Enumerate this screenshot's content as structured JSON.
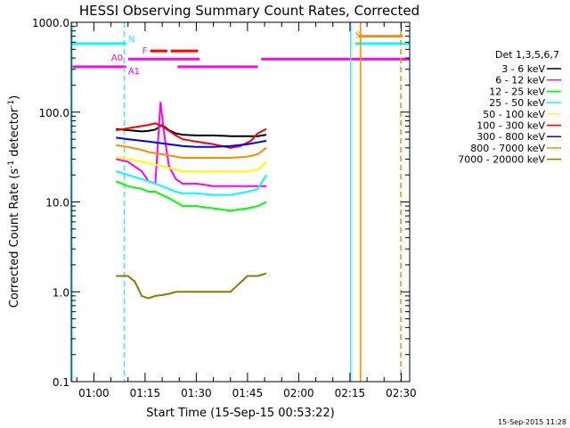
{
  "chart_data": {
    "type": "line",
    "title": "HESSI Observing Summary Count Rates, Corrected",
    "xlabel": "Start Time (15-Sep-15 00:53:22)",
    "ylabel": "Corrected Count Rate (s⁻¹ detector⁻¹)",
    "ylabel_main": "Corrected Count Rate (s",
    "ylabel_sup": "-1",
    "ylabel_mid": " detector",
    "ylabel_end": ")",
    "x_range_minutes": [
      53.37,
      152.5
    ],
    "ylim": [
      0.1,
      1000
    ],
    "y_scale": "log",
    "x_ticks": [
      {
        "minute": 60,
        "label": "01:00"
      },
      {
        "minute": 75,
        "label": "01:15"
      },
      {
        "minute": 90,
        "label": "01:30"
      },
      {
        "minute": 105,
        "label": "01:45"
      },
      {
        "minute": 120,
        "label": "02:00"
      },
      {
        "minute": 135,
        "label": "02:15"
      },
      {
        "minute": 150,
        "label": "02:30"
      }
    ],
    "y_ticks": [
      {
        "value": 1000,
        "label": "1000.0"
      },
      {
        "value": 100,
        "label": "100.0"
      },
      {
        "value": 10,
        "label": "10.0"
      },
      {
        "value": 1,
        "label": "1.0"
      },
      {
        "value": 0.1,
        "label": "0.1"
      }
    ],
    "legend_title": "Det 1,3,5,6,7",
    "legend_position": "right",
    "series": [
      {
        "name": "3 - 6 keV",
        "color": "#000000",
        "x": [
          66.5,
          70,
          74,
          76,
          78,
          80,
          82,
          84,
          86,
          90,
          95,
          100,
          105,
          108,
          110.5
        ],
        "y": [
          65,
          63,
          61,
          62,
          64,
          72,
          63,
          58,
          56,
          55,
          55,
          54,
          54,
          54,
          56
        ]
      },
      {
        "name": "6 - 12 keV",
        "color": "#ff00ff",
        "x": [
          66.5,
          70,
          74,
          76,
          78,
          79.5,
          80.5,
          82,
          84,
          86,
          90,
          95,
          100,
          105,
          108,
          110.5
        ],
        "y": [
          30,
          28,
          22,
          17,
          16,
          130,
          60,
          25,
          18,
          16,
          16,
          15,
          15,
          15,
          15,
          15
        ]
      },
      {
        "name": "12 - 25 keV",
        "color": "#00ff00",
        "x": [
          66.5,
          70,
          74,
          76,
          78,
          80,
          82,
          84,
          86,
          90,
          95,
          100,
          105,
          108,
          110.5
        ],
        "y": [
          17,
          15,
          14,
          13,
          13,
          12,
          11,
          10,
          9,
          9,
          8.5,
          8,
          8.5,
          9,
          10
        ]
      },
      {
        "name": "25 - 50 keV",
        "color": "#00ffff",
        "x": [
          66.5,
          70,
          74,
          76,
          78,
          80,
          82,
          84,
          86,
          90,
          95,
          100,
          105,
          108,
          110.5
        ],
        "y": [
          22,
          20,
          18,
          17,
          16,
          15,
          14,
          13,
          12.5,
          12.5,
          12,
          12,
          13,
          14,
          20
        ]
      },
      {
        "name": "50 - 100 keV",
        "color": "#ffff00",
        "x": [
          66.5,
          70,
          74,
          76,
          78,
          80,
          82,
          84,
          86,
          90,
          95,
          100,
          105,
          108,
          110.5
        ],
        "y": [
          32,
          30,
          28,
          27,
          26,
          25,
          24,
          23,
          22,
          22,
          22,
          22,
          22,
          23,
          28
        ]
      },
      {
        "name": "100 - 300 keV",
        "color": "#ff0000",
        "x": [
          66.5,
          70,
          74,
          76,
          78,
          80,
          82,
          84,
          86,
          90,
          95,
          100,
          103,
          106,
          108,
          110.5
        ],
        "y": [
          63,
          66,
          70,
          72,
          75,
          70,
          62,
          55,
          50,
          47,
          44,
          40,
          42,
          48,
          58,
          65
        ]
      },
      {
        "name": "300 - 800 keV",
        "color": "#0000ff",
        "x": [
          66.5,
          70,
          74,
          76,
          78,
          80,
          82,
          84,
          86,
          90,
          95,
          100,
          105,
          108,
          110.5
        ],
        "y": [
          52,
          50,
          48,
          47,
          46,
          45,
          44,
          43,
          42,
          41,
          41,
          42,
          44,
          46,
          48
        ]
      },
      {
        "name": "800 - 7000 keV",
        "color": "#ff8c00",
        "x": [
          66.5,
          70,
          74,
          76,
          78,
          80,
          82,
          84,
          86,
          90,
          95,
          100,
          105,
          108,
          110.5
        ],
        "y": [
          43,
          41,
          38,
          36,
          35,
          34,
          33,
          32,
          31,
          31,
          31,
          31,
          32,
          34,
          40
        ]
      },
      {
        "name": "7000 - 20000 keV",
        "color": "#808000",
        "x": [
          66.5,
          70,
          72,
          74,
          76,
          78,
          80,
          82,
          84,
          86,
          90,
          95,
          100,
          105,
          108,
          110.5
        ],
        "y": [
          1.5,
          1.5,
          1.3,
          0.9,
          0.85,
          0.9,
          0.92,
          0.95,
          1.0,
          1.0,
          1.0,
          1.0,
          1.0,
          1.5,
          1.5,
          1.6
        ]
      }
    ],
    "flag_bars": [
      {
        "label": "N",
        "label_color": "#00ffff",
        "color": "#00ffff",
        "y_level": 580,
        "segments": [
          [
            53.37,
            69.5
          ],
          [
            136.5,
            152.5
          ]
        ]
      },
      {
        "label": "F",
        "label_color": "#ff00ff",
        "color": "#ff0000",
        "y_level": 480,
        "segments": [
          [
            76.5,
            81.5
          ],
          [
            82.5,
            90.5
          ]
        ]
      },
      {
        "label": "S",
        "label_color": "#ff8c00",
        "color": "#ff8c00",
        "y_level": 700,
        "segments": [
          [
            137.5,
            150.5
          ]
        ]
      },
      {
        "label": "A0",
        "label_color": "#ff00ff",
        "color": "#ff00ff",
        "y_level": 390,
        "segments": [
          [
            70,
            91
          ],
          [
            109,
            152.5
          ]
        ]
      },
      {
        "label": "A1",
        "label_color": "#ff00ff",
        "color": "#ff00ff",
        "y_level": 320,
        "segments": [
          [
            53.37,
            69.5
          ],
          [
            84.5,
            108
          ]
        ]
      }
    ],
    "vertical_markers": [
      {
        "minute": 53.6,
        "color": "#00ffff",
        "style": "solid"
      },
      {
        "minute": 68.9,
        "color": "#00ffff",
        "style": "dashed"
      },
      {
        "minute": 135.2,
        "color": "#00ffff",
        "style": "solid"
      },
      {
        "minute": 138.1,
        "color": "#ff8c00",
        "style": "solid"
      },
      {
        "minute": 149.9,
        "color": "#ff8c00",
        "style": "dashed"
      }
    ]
  },
  "footer_timestamp": "15-Sep-2015 11:28"
}
